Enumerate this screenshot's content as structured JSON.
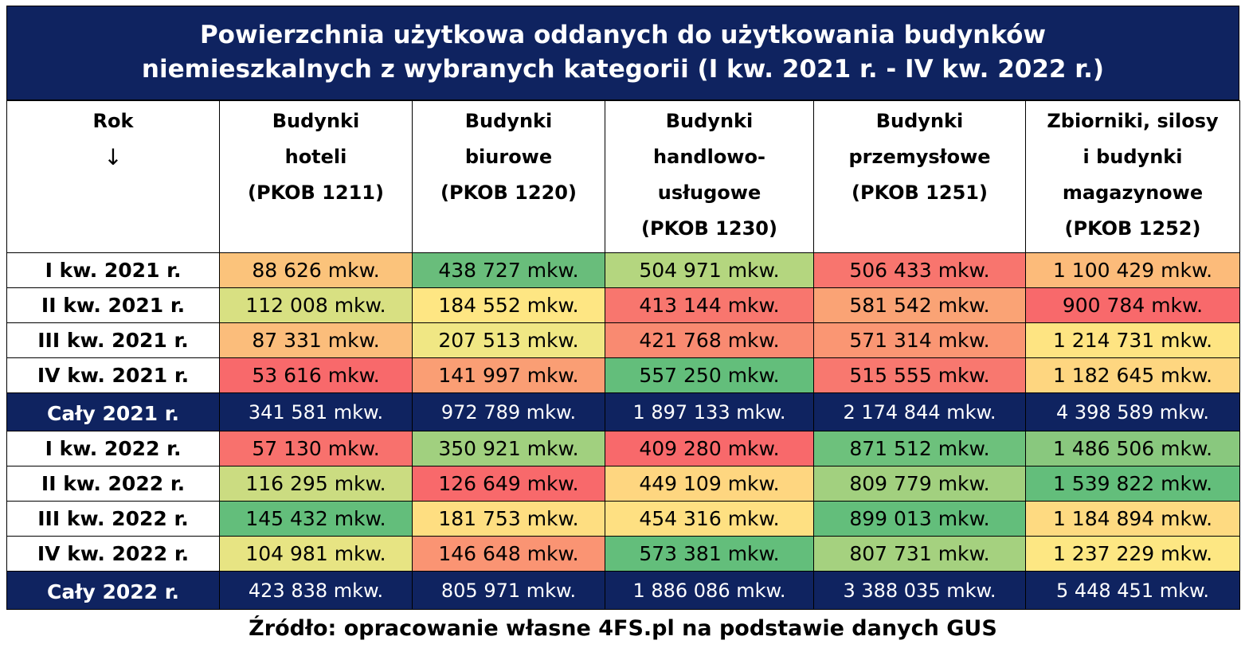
{
  "title_line1": "Powierzchnia użytkowa oddanych do użytkowania budynków",
  "title_line2": "niemieszkalnych z wybranych kategorii (I kw. 2021 r. - IV kw. 2022 r.)",
  "header": {
    "rok": "Rok",
    "arrow": "↓",
    "cols": [
      [
        "Budynki",
        "hoteli",
        "(PKOB 1211)"
      ],
      [
        "Budynki",
        "biurowe",
        "(PKOB 1220)"
      ],
      [
        "Budynki",
        "handlowo-",
        "usługowe",
        "(PKOB 1230)"
      ],
      [
        "Budynki",
        "przemysłowe",
        "(PKOB 1251)"
      ],
      [
        "Zbiorniki, silosy",
        "i budynki",
        "magazynowe",
        "(PKOB 1252)"
      ]
    ]
  },
  "rows": [
    {
      "label": "I kw. 2021 r.",
      "total": false,
      "values": [
        "88 626 mkw.",
        "438 727 mkw.",
        "504 971 mkw.",
        "506 433 mkw.",
        "1 100 429 mkw."
      ],
      "colors": [
        "#fbc37b",
        "#69bd7b",
        "#b4d67f",
        "#f8756e",
        "#fcbb7a"
      ]
    },
    {
      "label": "II kw. 2021 r.",
      "total": false,
      "values": [
        "112 008 mkw.",
        "184 552 mkw.",
        "413 144 mkw.",
        "581 542 mkw.",
        "900 784 mkw."
      ],
      "colors": [
        "#d8e082",
        "#fee683",
        "#f8766e",
        "#faa375",
        "#f8696b"
      ]
    },
    {
      "label": "III kw. 2021 r.",
      "total": false,
      "values": [
        "87 331 mkw.",
        "207 513 mkw.",
        "421 768 mkw.",
        "571 314 mkw.",
        "1 214 731 mkw."
      ],
      "colors": [
        "#fbbd7b",
        "#f0e784",
        "#f98a71",
        "#fa9673",
        "#fee482"
      ]
    },
    {
      "label": "IV kw. 2021 r.",
      "total": false,
      "values": [
        "53 616 mkw.",
        "141 997 mkw.",
        "557 250 mkw.",
        "515 555 mkw.",
        "1 182 645 mkw."
      ],
      "colors": [
        "#f8696b",
        "#fa9e74",
        "#63be7b",
        "#f8786f",
        "#fed680"
      ]
    },
    {
      "label": "Cały 2021 r.",
      "total": true,
      "values": [
        "341 581 mkw.",
        "972 789 mkw.",
        "1 897 133 mkw.",
        "2 174 844 mkw.",
        "4 398 589 mkw."
      ],
      "colors": []
    },
    {
      "label": "I kw. 2022 r.",
      "total": false,
      "values": [
        "57 130 mkw.",
        "350 921 mkw.",
        "409 280 mkw.",
        "871 512 mkw.",
        "1 486 506 mkw."
      ],
      "colors": [
        "#f8716d",
        "#a1d07f",
        "#f8696b",
        "#6dc17c",
        "#89c87e"
      ]
    },
    {
      "label": "II kw. 2022 r.",
      "total": false,
      "values": [
        "116 295 mkw.",
        "126 649 mkw.",
        "449 109 mkw.",
        "809 779 mkw.",
        "1 539 822 mkw."
      ],
      "colors": [
        "#cbdc81",
        "#f8696b",
        "#fed680",
        "#a2d07f",
        "#63be7b"
      ]
    },
    {
      "label": "III kw. 2022 r.",
      "total": false,
      "values": [
        "145 432 mkw.",
        "181 753 mkw.",
        "454 316 mkw.",
        "899 013 mkw.",
        "1 184 894 mkw."
      ],
      "colors": [
        "#63be7b",
        "#fede81",
        "#fee082",
        "#63be7b",
        "#feda81"
      ]
    },
    {
      "label": "IV kw. 2022 r.",
      "total": false,
      "values": [
        "104 981 mkw.",
        "146 648 mkw.",
        "573 381 mkw.",
        "807 731 mkw.",
        "1 237 229 mkw."
      ],
      "colors": [
        "#e7e483",
        "#fa9473",
        "#63be7b",
        "#a5d17f",
        "#fde783"
      ]
    },
    {
      "label": "Cały 2022 r.",
      "total": true,
      "values": [
        "423 838 mkw.",
        "805 971 mkw.",
        "1 886 086 mkw.",
        "3 388 035 mkw.",
        "5 448 451 mkw."
      ],
      "colors": []
    }
  ],
  "source": "Źródło: opracowanie własne 4FS.pl na podstawie danych GUS"
}
